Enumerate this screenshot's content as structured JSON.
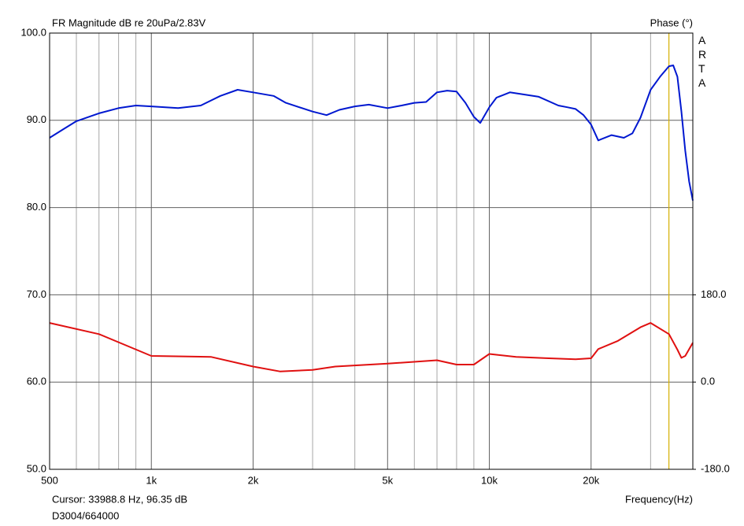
{
  "chart_data": {
    "type": "line",
    "title": "FR Magnitude dB re 20uPa/2.83V",
    "y2_title": "Phase (°)",
    "watermark": "ARTA",
    "xlabel": "Frequency(Hz)",
    "cursor": {
      "label": "Cursor: 33988.8 Hz, 96.35 dB",
      "x": 33988.8,
      "color": "#d4b000"
    },
    "footer": "D3004/664000",
    "xscale": "log",
    "xlim": [
      500,
      40000
    ],
    "xticks": [
      {
        "value": 500,
        "label": "500"
      },
      {
        "value": 1000,
        "label": "1k"
      },
      {
        "value": 2000,
        "label": "2k"
      },
      {
        "value": 5000,
        "label": "5k"
      },
      {
        "value": 10000,
        "label": "10k"
      },
      {
        "value": 20000,
        "label": "20k"
      }
    ],
    "xgrid": [
      600,
      700,
      800,
      900,
      3000,
      4000,
      6000,
      7000,
      8000,
      9000,
      30000
    ],
    "ylim": [
      50,
      100
    ],
    "yticks": [
      {
        "value": 50,
        "label": "50.0"
      },
      {
        "value": 60,
        "label": "60.0"
      },
      {
        "value": 70,
        "label": "70.0"
      },
      {
        "value": 80,
        "label": "80.0"
      },
      {
        "value": 90,
        "label": "90.0"
      },
      {
        "value": 100,
        "label": "100.0"
      }
    ],
    "y2lim": [
      -180,
      720
    ],
    "y2ticks": [
      {
        "value": -180,
        "label": "-180.0"
      },
      {
        "value": 0,
        "label": "0.0"
      },
      {
        "value": 180,
        "label": "180.0"
      }
    ],
    "grid": true,
    "series": [
      {
        "color": "#0018d0",
        "x": [
          500,
          550,
          600,
          700,
          800,
          900,
          1000,
          1200,
          1400,
          1600,
          1800,
          2000,
          2300,
          2500,
          3000,
          3300,
          3600,
          4000,
          4400,
          5000,
          5500,
          6000,
          6500,
          7000,
          7500,
          8000,
          8500,
          9000,
          9400,
          10000,
          10500,
          11500,
          13000,
          14000,
          16000,
          17000,
          18000,
          19000,
          20000,
          21000,
          23000,
          25000,
          26500,
          28000,
          30000,
          32000,
          34000,
          35000,
          36000,
          37000,
          38000,
          39000,
          40000
        ],
        "values": [
          88.0,
          89.0,
          89.9,
          90.8,
          91.4,
          91.7,
          91.6,
          91.4,
          91.7,
          92.8,
          93.5,
          93.2,
          92.8,
          92.0,
          91.0,
          90.6,
          91.2,
          91.6,
          91.8,
          91.4,
          91.7,
          92.0,
          92.1,
          93.2,
          93.4,
          93.3,
          92.0,
          90.4,
          89.7,
          91.5,
          92.6,
          93.2,
          92.9,
          92.7,
          91.7,
          91.5,
          91.3,
          90.6,
          89.5,
          87.7,
          88.3,
          88.0,
          88.5,
          90.3,
          93.5,
          95.0,
          96.2,
          96.3,
          95.0,
          91.0,
          86.5,
          83.0,
          80.8
        ]
      },
      {
        "color": "#e01010",
        "axis": "y2",
        "x": [
          500,
          700,
          1000,
          1500,
          2000,
          2400,
          3000,
          3500,
          5000,
          7000,
          8000,
          9000,
          10000,
          12000,
          15000,
          18000,
          20000,
          21000,
          24000,
          28000,
          30000,
          34000,
          36000,
          37000,
          38000,
          40000
        ],
        "values": [
          122,
          99,
          54,
          52,
          32,
          22,
          25,
          32,
          38,
          45,
          36,
          36,
          58,
          52,
          49,
          47,
          49,
          68,
          85,
          113,
          122,
          99,
          67,
          50,
          54,
          81
        ]
      }
    ]
  }
}
